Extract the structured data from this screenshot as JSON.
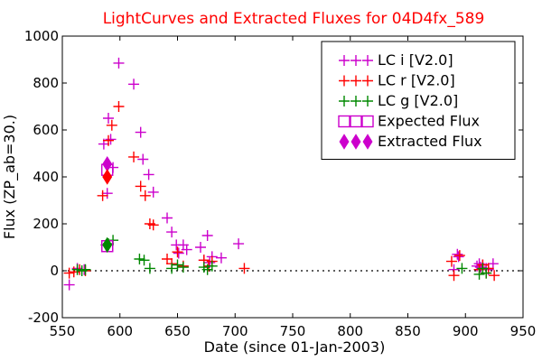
{
  "chart_data": {
    "type": "scatter",
    "title": "LightCurves and Extracted Fluxes for 04D4fx_589",
    "xlabel": "Date (since 01-Jan-2003)",
    "ylabel": "Flux (ZP_ab=30.)",
    "xlim": [
      550,
      950
    ],
    "ylim": [
      -200,
      1000
    ],
    "xticks": [
      550,
      600,
      650,
      700,
      750,
      800,
      850,
      900,
      950
    ],
    "yticks": [
      -200,
      0,
      200,
      400,
      600,
      800,
      1000
    ],
    "grid": false,
    "legend_position": "top-right",
    "series": [
      {
        "name": "LC i [V2.0]",
        "color": "#cc00cc",
        "marker": "plus",
        "x": [
          556,
          563,
          569,
          586,
          589,
          590,
          592,
          594,
          599,
          612,
          618,
          620,
          625,
          629,
          641,
          645,
          649,
          651,
          655,
          658,
          670,
          673,
          676,
          678,
          680,
          688,
          703,
          890,
          893,
          894,
          910,
          912,
          913,
          915,
          918,
          920,
          924
        ],
        "y": [
          -60,
          10,
          5,
          540,
          330,
          650,
          560,
          440,
          885,
          795,
          590,
          475,
          410,
          335,
          225,
          165,
          110,
          75,
          110,
          90,
          100,
          45,
          150,
          35,
          60,
          55,
          115,
          5,
          70,
          60,
          20,
          30,
          15,
          25,
          10,
          5,
          30
        ]
      },
      {
        "name": "LC r [V2.0]",
        "color": "#ff0000",
        "marker": "plus",
        "x": [
          556,
          560,
          565,
          570,
          585,
          590,
          593,
          599,
          612,
          618,
          622,
          626,
          629,
          641,
          645,
          650,
          655,
          673,
          677,
          680,
          708,
          888,
          890,
          895,
          912,
          915,
          918,
          920,
          925
        ],
        "y": [
          -10,
          -5,
          5,
          0,
          320,
          555,
          620,
          700,
          485,
          360,
          320,
          200,
          195,
          50,
          30,
          80,
          20,
          45,
          20,
          40,
          10,
          40,
          -20,
          65,
          5,
          25,
          -10,
          10,
          -20
        ]
      },
      {
        "name": "LC g [V2.0]",
        "color": "#008800",
        "marker": "plus",
        "x": [
          563,
          567,
          570,
          588,
          590,
          594,
          617,
          621,
          626,
          645,
          650,
          655,
          673,
          676,
          680,
          897,
          912,
          915,
          918
        ],
        "y": [
          5,
          0,
          5,
          110,
          115,
          130,
          50,
          45,
          10,
          10,
          25,
          15,
          15,
          5,
          20,
          10,
          -15,
          10,
          -10
        ]
      },
      {
        "name": "Expected Flux",
        "color": "#cc00cc",
        "marker": "square-open",
        "x": [
          589,
          589,
          589
        ],
        "y": [
          430,
          105,
          105
        ]
      },
      {
        "name": "Extracted Flux",
        "color": "#cc00cc",
        "marker": "diamond",
        "x": [
          589,
          589,
          589
        ],
        "y": [
          455,
          400,
          110
        ],
        "point_colors": [
          "#cc00cc",
          "#ff0000",
          "#008800"
        ]
      }
    ]
  }
}
